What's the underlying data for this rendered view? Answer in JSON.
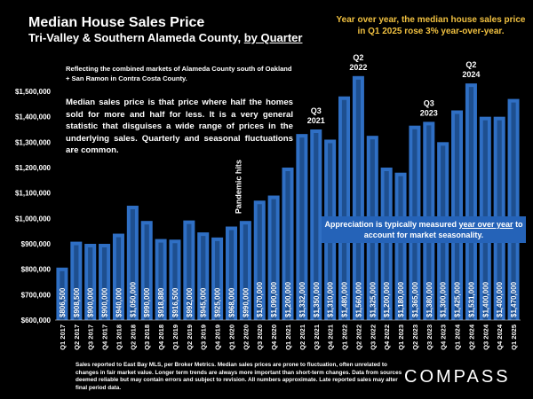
{
  "header": {
    "title": "Median House Sales Price",
    "subtitle_prefix": "Tri-Valley & Southern Alameda County, ",
    "subtitle_underlined": "by Quarter",
    "headline": "Year over year, the median house sales price in Q1 2025 rose 3% year-over-year."
  },
  "notes": {
    "markets": "Reflecting the combined markets of Alameda County south of Oakland + San Ramon in Contra Costa County.",
    "median_explainer": "Median sales price is that price where half the homes sold for more and half for less. It is a very general statistic that disguises a wide range of prices in the underlying sales. Quarterly and seasonal fluctuations are common.",
    "appreciation_prefix": "Appreciation is typically measured ",
    "appreciation_underlined": "year over year",
    "appreciation_suffix": " to account for market seasonality."
  },
  "footer": {
    "text": "Sales reported to East Bay MLS, per Broker Metrics. Median sales prices are prone to fluctuation, often unrelated to changes in fair market value. Longer term trends are always more important than short-term changes. Data from sources deemed reliable but may contain errors and subject to revision. All numbers approximate. Late reported sales may alter final period data.",
    "logo": "COMPASS"
  },
  "colors": {
    "background": "#000000",
    "bar_fill": "#2f6fc4",
    "bar_inner": "#1e4f8f",
    "headline": "#f0c040",
    "callout_bg": "#2563b8"
  },
  "chart_data": {
    "type": "bar",
    "ylim": [
      600000,
      1500000
    ],
    "yticks": [
      "$600,000",
      "$700,000",
      "$800,000",
      "$900,000",
      "$1,000,000",
      "$1,100,000",
      "$1,200,000",
      "$1,300,000",
      "$1,400,000",
      "$1,500,000"
    ],
    "ytick_values": [
      600000,
      700000,
      800000,
      900000,
      1000000,
      1100000,
      1200000,
      1300000,
      1400000,
      1500000
    ],
    "grid": false,
    "categories": [
      "Q1 2017",
      "Q2 2017",
      "Q3 2017",
      "Q4 2017",
      "Q1 2018",
      "Q2 2018",
      "Q3 2018",
      "Q4 2018",
      "Q1 2019",
      "Q2 2019",
      "Q3 2019",
      "Q4 2019",
      "Q1 2020",
      "Q2 2020",
      "Q3 2020",
      "Q4 2020",
      "Q1 2021",
      "Q2 2021",
      "Q3 2021",
      "Q4 2021",
      "Q1 2022",
      "Q2 2022",
      "Q3 2022",
      "Q4 2022",
      "Q1 2023",
      "Q2 2023",
      "Q3 2023",
      "Q4 2023",
      "Q1 2024",
      "Q2 2024",
      "Q3 2024",
      "Q4 2024",
      "Q1 2025"
    ],
    "values": [
      806500,
      908500,
      900000,
      900000,
      940000,
      1050000,
      990000,
      918880,
      916500,
      992000,
      945000,
      925000,
      968000,
      990000,
      1070000,
      1090000,
      1200000,
      1332000,
      1350000,
      1310000,
      1480000,
      1560000,
      1325000,
      1200000,
      1180000,
      1365000,
      1380000,
      1300000,
      1425000,
      1531000,
      1400000,
      1400000,
      1470000
    ],
    "value_labels": [
      "$806,500",
      "$908,500",
      "$900,000",
      "$900,000",
      "$940,000",
      "$1,050,000",
      "$990,000",
      "$918,880",
      "$916,500",
      "$992,000",
      "$945,000",
      "$925,000",
      "$968,000",
      "$990,000",
      "$1,070,000",
      "$1,090,000",
      "$1,200,000",
      "$1,332,000",
      "$1,350,000",
      "$1,310,000",
      "$1,480,000",
      "$1,560,000",
      "$1,325,000",
      "$1,200,000",
      "$1,180,000",
      "$1,365,000",
      "$1,380,000",
      "$1,300,000",
      "$1,425,000",
      "$1,531,000",
      "$1,400,000",
      "$1,400,000",
      "$1,470,000"
    ],
    "annotations": [
      {
        "index": 18,
        "line1": "Q3",
        "line2": "2021"
      },
      {
        "index": 21,
        "line1": "Q2",
        "line2": "2022"
      },
      {
        "index": 26,
        "line1": "Q3",
        "line2": "2023"
      },
      {
        "index": 29,
        "line1": "Q2",
        "line2": "2024"
      }
    ],
    "pandemic_label": "Pandemic hits",
    "pandemic_index": 12
  }
}
